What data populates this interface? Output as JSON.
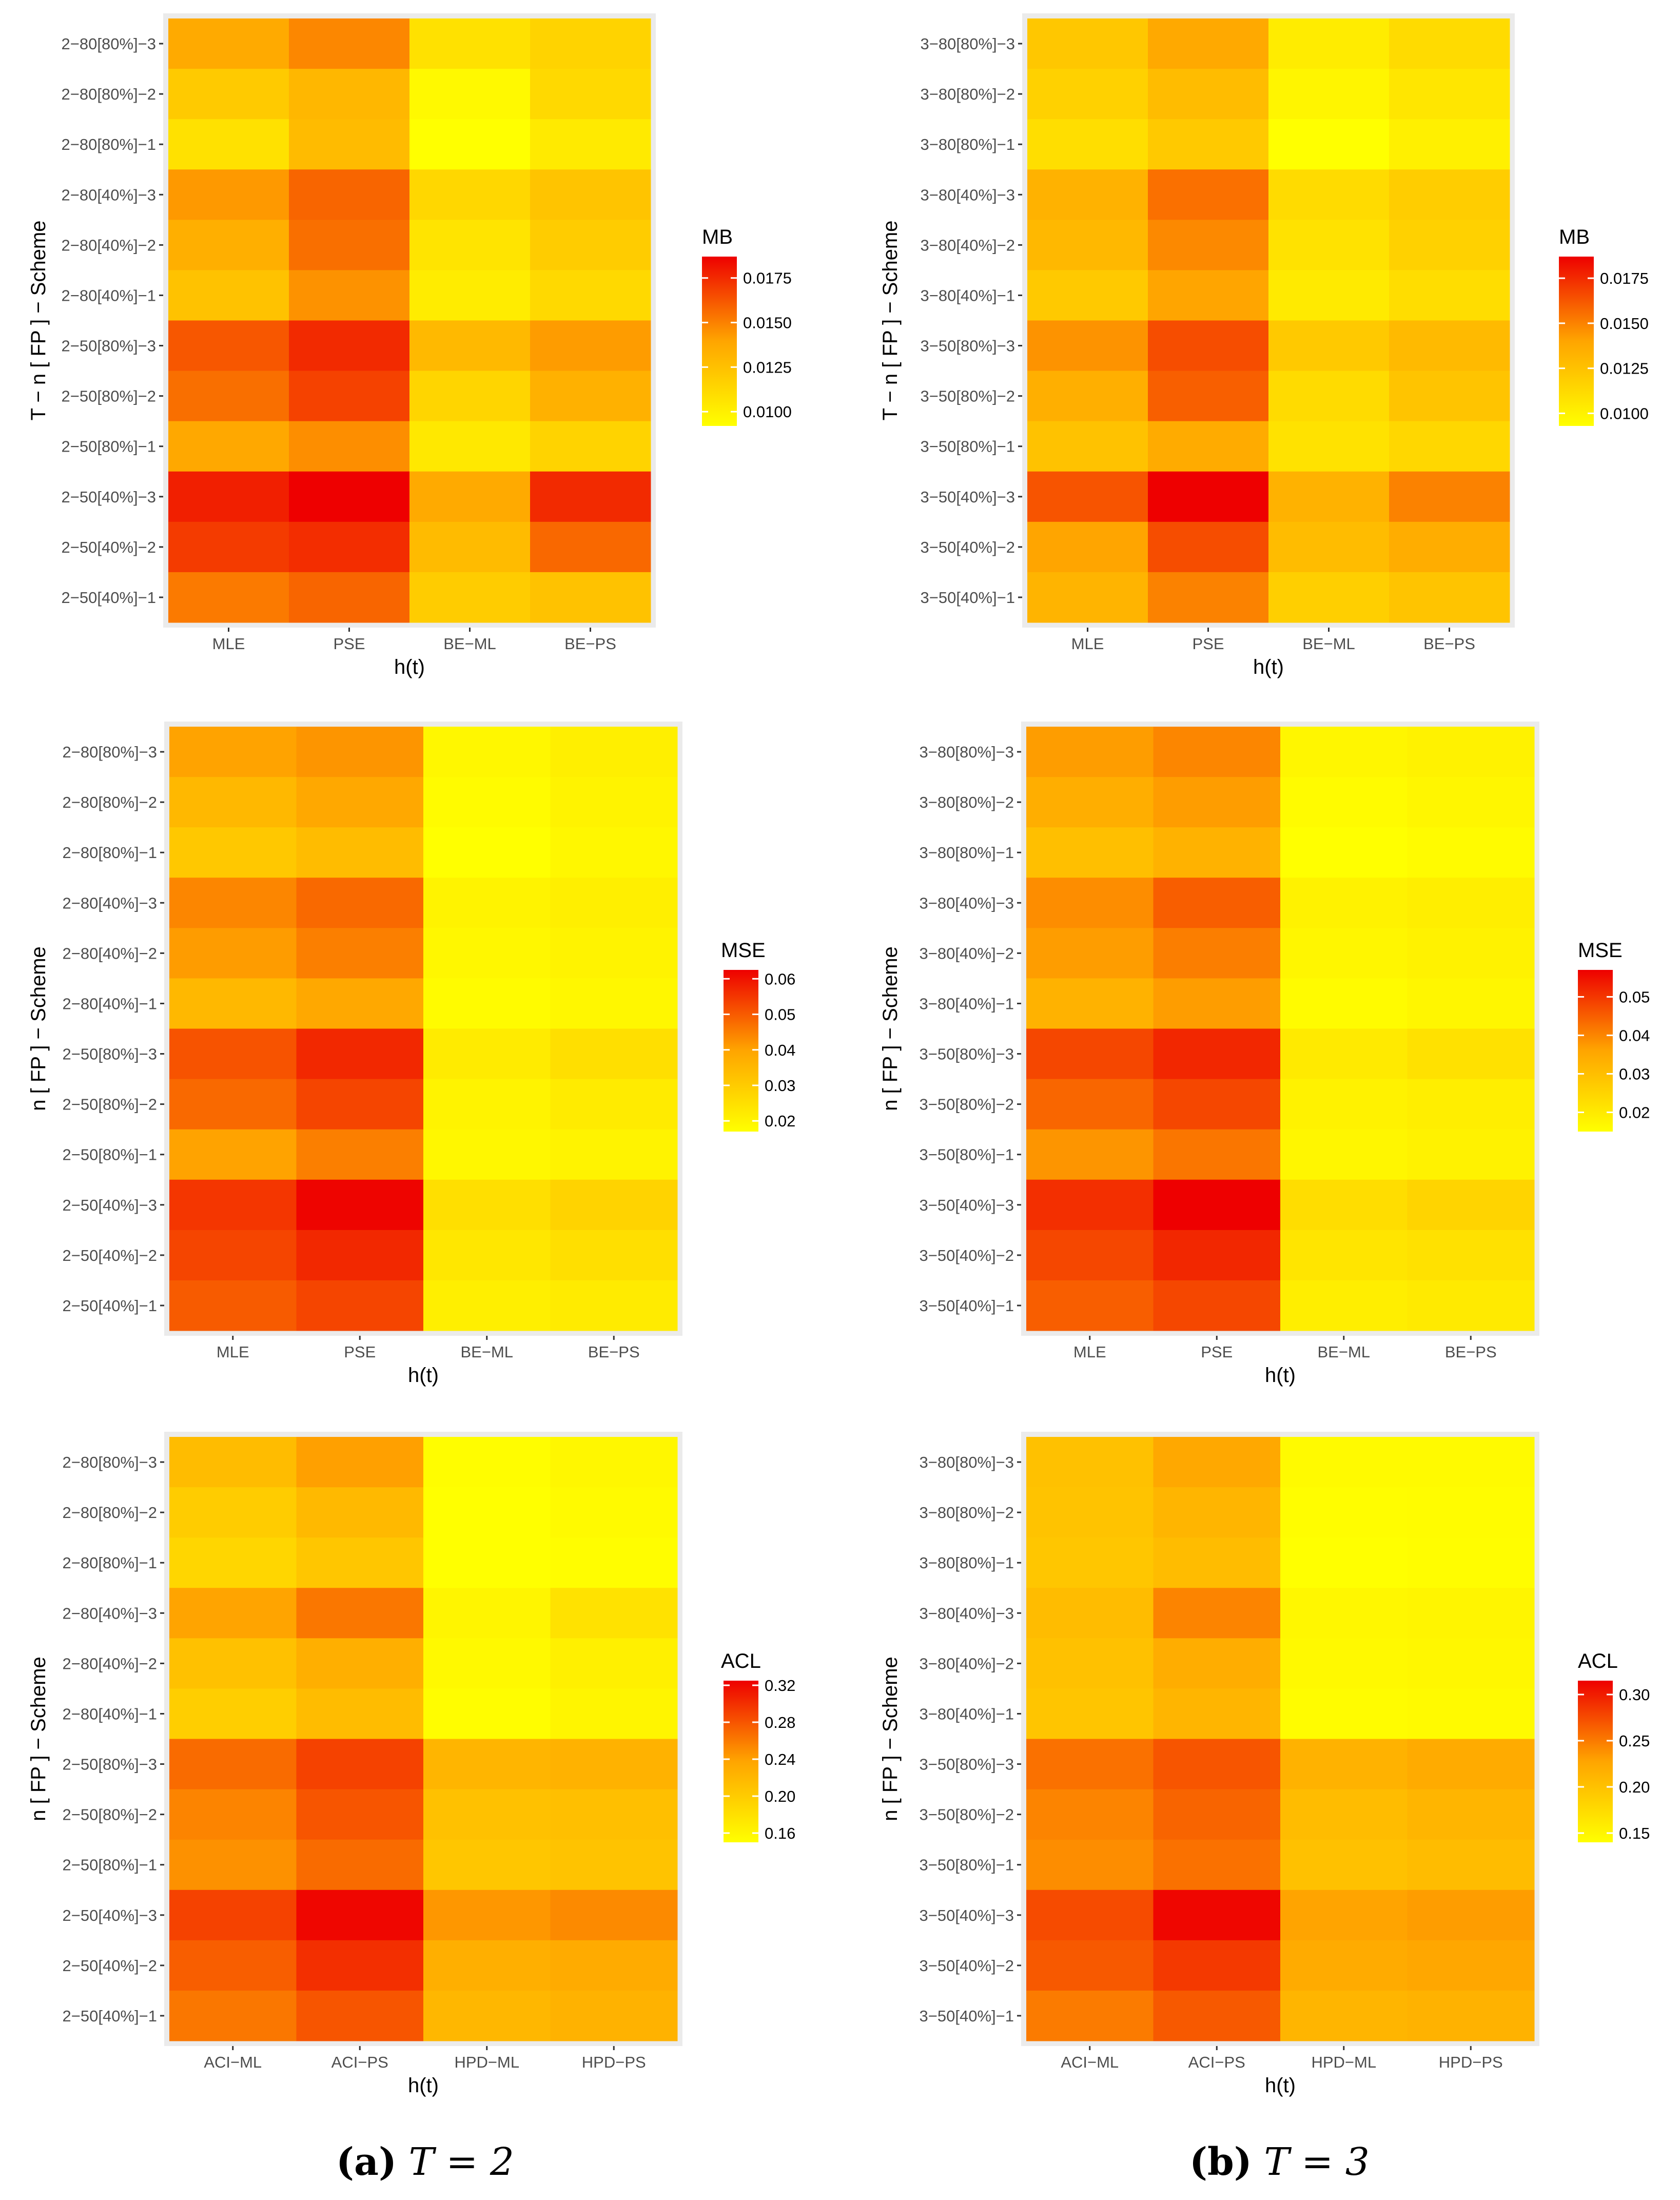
{
  "figure": {
    "caption_a": {
      "label": "(a)",
      "text": "T = 2"
    },
    "caption_b": {
      "label": "(b)",
      "text": "T = 3"
    }
  },
  "colors": {
    "low": "#FFFF00",
    "mid": "#FFA500",
    "high": "#EE0000",
    "panel_bg": "#EBEBEB"
  },
  "chart_data": [
    {
      "id": "a1",
      "type": "heatmap",
      "title": "",
      "xlabel": "h(t)",
      "ylabel": "T − n [ FP ] − Scheme",
      "legend_title": "MB",
      "legend_position": "right",
      "legend_ticks": [
        0.01,
        0.0125,
        0.015,
        0.0175
      ],
      "legend_tick_labels": [
        "0.0100",
        "0.0125",
        "0.0150",
        "0.0175"
      ],
      "legend_range": [
        0.0092,
        0.0187
      ],
      "x": [
        "MLE",
        "PSE",
        "BE−ML",
        "BE−PS"
      ],
      "y": [
        "2−80[80%]−3",
        "2−80[80%]−2",
        "2−80[80%]−1",
        "2−80[40%]−3",
        "2−80[40%]−2",
        "2−80[40%]−1",
        "2−50[80%]−3",
        "2−50[80%]−2",
        "2−50[80%]−1",
        "2−50[40%]−3",
        "2−50[40%]−2",
        "2−50[40%]−1"
      ],
      "values": [
        [
          0.0137,
          0.0148,
          0.0108,
          0.0115
        ],
        [
          0.012,
          0.013,
          0.0095,
          0.0112
        ],
        [
          0.0108,
          0.0128,
          0.0092,
          0.0103
        ],
        [
          0.0143,
          0.0158,
          0.0113,
          0.0123
        ],
        [
          0.0134,
          0.0155,
          0.0106,
          0.0119
        ],
        [
          0.0124,
          0.0145,
          0.0102,
          0.0112
        ],
        [
          0.0162,
          0.0175,
          0.0129,
          0.0142
        ],
        [
          0.0155,
          0.0168,
          0.0114,
          0.0133
        ],
        [
          0.0138,
          0.0146,
          0.0104,
          0.0115
        ],
        [
          0.0178,
          0.0187,
          0.0137,
          0.0175
        ],
        [
          0.017,
          0.0174,
          0.0128,
          0.0157
        ],
        [
          0.0152,
          0.0158,
          0.0119,
          0.0124
        ]
      ]
    },
    {
      "id": "b1",
      "type": "heatmap",
      "title": "",
      "xlabel": "h(t)",
      "ylabel": "T − n [ FP ] − Scheme",
      "legend_title": "MB",
      "legend_position": "right",
      "legend_ticks": [
        0.01,
        0.0125,
        0.015,
        0.0175
      ],
      "legend_tick_labels": [
        "0.0100",
        "0.0125",
        "0.0150",
        "0.0175"
      ],
      "legend_range": [
        0.0093,
        0.0187
      ],
      "x": [
        "MLE",
        "PSE",
        "BE−ML",
        "BE−PS"
      ],
      "y": [
        "3−80[80%]−3",
        "3−80[80%]−2",
        "3−80[80%]−1",
        "3−80[40%]−3",
        "3−80[40%]−2",
        "3−80[40%]−1",
        "3−50[80%]−3",
        "3−50[80%]−2",
        "3−50[80%]−1",
        "3−50[40%]−3",
        "3−50[40%]−2",
        "3−50[40%]−1"
      ],
      "values": [
        [
          0.0122,
          0.0138,
          0.0103,
          0.0112
        ],
        [
          0.0117,
          0.0128,
          0.0098,
          0.0106
        ],
        [
          0.011,
          0.0121,
          0.0093,
          0.0101
        ],
        [
          0.0133,
          0.0155,
          0.0112,
          0.0119
        ],
        [
          0.013,
          0.0148,
          0.0108,
          0.0117
        ],
        [
          0.0121,
          0.014,
          0.0104,
          0.0111
        ],
        [
          0.0145,
          0.0165,
          0.0121,
          0.0129
        ],
        [
          0.0135,
          0.016,
          0.0112,
          0.0124
        ],
        [
          0.0125,
          0.0137,
          0.0108,
          0.0114
        ],
        [
          0.0163,
          0.0187,
          0.0133,
          0.015
        ],
        [
          0.014,
          0.0165,
          0.0128,
          0.0136
        ],
        [
          0.0132,
          0.015,
          0.0118,
          0.0124
        ]
      ]
    },
    {
      "id": "a2",
      "type": "heatmap",
      "title": "",
      "xlabel": "h(t)",
      "ylabel": "n [ FP ] − Scheme",
      "legend_title": "MSE",
      "legend_position": "right",
      "legend_ticks": [
        0.02,
        0.03,
        0.04,
        0.05,
        0.06
      ],
      "legend_tick_labels": [
        "0.02",
        "0.03",
        "0.04",
        "0.05",
        "0.06"
      ],
      "legend_range": [
        0.017,
        0.0625
      ],
      "x": [
        "MLE",
        "PSE",
        "BE−ML",
        "BE−PS"
      ],
      "y": [
        "2−80[80%]−3",
        "2−80[80%]−2",
        "2−80[80%]−1",
        "2−80[40%]−3",
        "2−80[40%]−2",
        "2−80[40%]−1",
        "2−50[80%]−3",
        "2−50[80%]−2",
        "2−50[80%]−1",
        "2−50[40%]−3",
        "2−50[40%]−2",
        "2−50[40%]−1"
      ],
      "values": [
        [
          0.04,
          0.042,
          0.019,
          0.021
        ],
        [
          0.035,
          0.039,
          0.018,
          0.02
        ],
        [
          0.031,
          0.034,
          0.017,
          0.019
        ],
        [
          0.044,
          0.048,
          0.02,
          0.021
        ],
        [
          0.041,
          0.045,
          0.019,
          0.02
        ],
        [
          0.035,
          0.039,
          0.018,
          0.019
        ],
        [
          0.051,
          0.057,
          0.022,
          0.025
        ],
        [
          0.048,
          0.053,
          0.02,
          0.022
        ],
        [
          0.04,
          0.045,
          0.019,
          0.02
        ],
        [
          0.055,
          0.062,
          0.025,
          0.028
        ],
        [
          0.053,
          0.057,
          0.023,
          0.025
        ],
        [
          0.05,
          0.053,
          0.021,
          0.022
        ]
      ]
    },
    {
      "id": "b2",
      "type": "heatmap",
      "title": "",
      "xlabel": "h(t)",
      "ylabel": "n [ FP ] − Scheme",
      "legend_title": "MSE",
      "legend_position": "right",
      "legend_ticks": [
        0.02,
        0.03,
        0.04,
        0.05
      ],
      "legend_tick_labels": [
        "0.02",
        "0.03",
        "0.04",
        "0.05"
      ],
      "legend_range": [
        0.015,
        0.057
      ],
      "x": [
        "MLE",
        "PSE",
        "BE−ML",
        "BE−PS"
      ],
      "y": [
        "3−80[80%]−3",
        "3−80[80%]−2",
        "3−80[80%]−1",
        "3−80[40%]−3",
        "3−80[40%]−2",
        "3−80[40%]−1",
        "3−50[80%]−3",
        "3−50[80%]−2",
        "3−50[80%]−1",
        "3−50[40%]−3",
        "3−50[40%]−2",
        "3−50[40%]−1"
      ],
      "values": [
        [
          0.037,
          0.04,
          0.017,
          0.018
        ],
        [
          0.034,
          0.037,
          0.016,
          0.017
        ],
        [
          0.03,
          0.033,
          0.015,
          0.016
        ],
        [
          0.039,
          0.045,
          0.018,
          0.019
        ],
        [
          0.037,
          0.041,
          0.017,
          0.018
        ],
        [
          0.033,
          0.037,
          0.016,
          0.017
        ],
        [
          0.048,
          0.052,
          0.02,
          0.022
        ],
        [
          0.044,
          0.048,
          0.018,
          0.019
        ],
        [
          0.038,
          0.042,
          0.017,
          0.018
        ],
        [
          0.051,
          0.057,
          0.023,
          0.025
        ],
        [
          0.048,
          0.052,
          0.021,
          0.022
        ],
        [
          0.045,
          0.048,
          0.019,
          0.02
        ]
      ]
    },
    {
      "id": "a3",
      "type": "heatmap",
      "title": "",
      "xlabel": "h(t)",
      "ylabel": "n [ FP ] − Scheme",
      "legend_title": "ACL",
      "legend_position": "right",
      "legend_ticks": [
        0.16,
        0.2,
        0.24,
        0.28,
        0.32
      ],
      "legend_tick_labels": [
        "0.16",
        "0.20",
        "0.24",
        "0.28",
        "0.32"
      ],
      "legend_range": [
        0.15,
        0.325
      ],
      "x": [
        "ACI−ML",
        "ACI−PS",
        "HPD−ML",
        "HPD−PS"
      ],
      "y": [
        "2−80[80%]−3",
        "2−80[80%]−2",
        "2−80[80%]−1",
        "2−80[40%]−3",
        "2−80[40%]−2",
        "2−80[40%]−1",
        "2−50[80%]−3",
        "2−50[80%]−2",
        "2−50[80%]−1",
        "2−50[40%]−3",
        "2−50[40%]−2",
        "2−50[40%]−1"
      ],
      "values": [
        [
          0.215,
          0.24,
          0.152,
          0.158
        ],
        [
          0.2,
          0.218,
          0.15,
          0.155
        ],
        [
          0.19,
          0.205,
          0.15,
          0.152
        ],
        [
          0.238,
          0.262,
          0.16,
          0.178
        ],
        [
          0.21,
          0.228,
          0.156,
          0.165
        ],
        [
          0.198,
          0.215,
          0.152,
          0.16
        ],
        [
          0.268,
          0.29,
          0.222,
          0.225
        ],
        [
          0.255,
          0.28,
          0.21,
          0.212
        ],
        [
          0.248,
          0.268,
          0.205,
          0.208
        ],
        [
          0.29,
          0.322,
          0.245,
          0.252
        ],
        [
          0.275,
          0.3,
          0.228,
          0.232
        ],
        [
          0.262,
          0.28,
          0.22,
          0.225
        ]
      ]
    },
    {
      "id": "b3",
      "type": "heatmap",
      "title": "",
      "xlabel": "h(t)",
      "ylabel": "n [ FP ] − Scheme",
      "legend_title": "ACL",
      "legend_position": "right",
      "legend_ticks": [
        0.15,
        0.2,
        0.25,
        0.3
      ],
      "legend_tick_labels": [
        "0.15",
        "0.20",
        "0.25",
        "0.30"
      ],
      "legend_range": [
        0.14,
        0.315
      ],
      "x": [
        "ACI−ML",
        "ACI−PS",
        "HPD−ML",
        "HPD−PS"
      ],
      "y": [
        "3−80[80%]−3",
        "3−80[80%]−2",
        "3−80[80%]−1",
        "3−80[40%]−3",
        "3−80[40%]−2",
        "3−80[40%]−1",
        "3−50[80%]−3",
        "3−50[80%]−2",
        "3−50[80%]−1",
        "3−50[40%]−3",
        "3−50[40%]−2",
        "3−50[40%]−1"
      ],
      "values": [
        [
          0.2,
          0.225,
          0.145,
          0.145
        ],
        [
          0.198,
          0.212,
          0.142,
          0.143
        ],
        [
          0.195,
          0.205,
          0.14,
          0.142
        ],
        [
          0.205,
          0.245,
          0.148,
          0.15
        ],
        [
          0.2,
          0.22,
          0.146,
          0.148
        ],
        [
          0.196,
          0.212,
          0.143,
          0.145
        ],
        [
          0.255,
          0.27,
          0.215,
          0.222
        ],
        [
          0.245,
          0.262,
          0.205,
          0.212
        ],
        [
          0.24,
          0.255,
          0.2,
          0.205
        ],
        [
          0.275,
          0.312,
          0.228,
          0.232
        ],
        [
          0.268,
          0.285,
          0.222,
          0.226
        ],
        [
          0.25,
          0.268,
          0.212,
          0.215
        ]
      ]
    }
  ]
}
